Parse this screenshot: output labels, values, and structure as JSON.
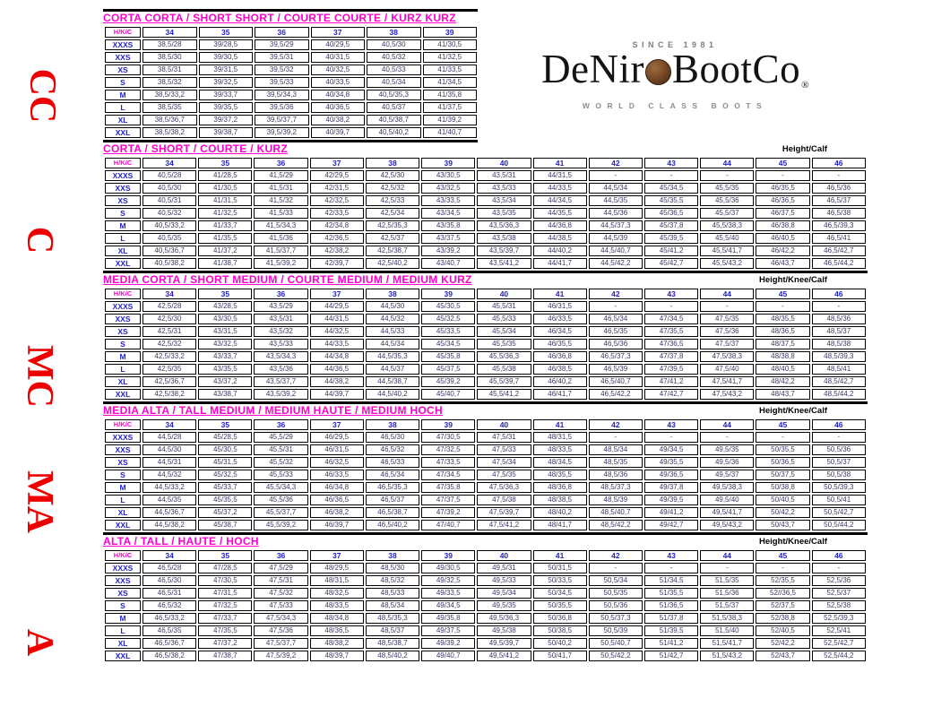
{
  "colors": {
    "title_magenta": "#ff00cc",
    "header_blue": "#2222cc",
    "value_navy": "#3a3a66",
    "side_red": "#ee0000",
    "coin_brown": "#7a4b27"
  },
  "side_labels": [
    {
      "text": "CC"
    },
    {
      "text": "C"
    },
    {
      "text": "MC"
    },
    {
      "text": "MA"
    },
    {
      "text": "A"
    }
  ],
  "logo": {
    "since": "SINCE 1981",
    "name_left": "DeNir",
    "name_right": "BootCo",
    "registered": "®",
    "tagline": "WORLD CLASS BOOTS",
    "coin_icon": "coin-icon"
  },
  "tables": [
    {
      "title": "CORTA CORTA / SHORT SHORT / COURTE COURTE / KURZ KURZ",
      "corner_label": "",
      "header_label": "H/K/C",
      "columns": [
        "34",
        "35",
        "36",
        "37",
        "38",
        "39"
      ],
      "rows": [
        {
          "label": "XXXS",
          "values": [
            "38,5/28",
            "39/28,5",
            "39,5/29",
            "40/29,5",
            "40,5/30",
            "41/30,5"
          ]
        },
        {
          "label": "XXS",
          "values": [
            "38,5/30",
            "39/30,5",
            "39,5/31",
            "40/31,5",
            "40,5/32",
            "41/32,5"
          ]
        },
        {
          "label": "XS",
          "values": [
            "38,5/31",
            "39/31,5",
            "39,5/32",
            "40/32,5",
            "40,5/33",
            "41/33,5"
          ]
        },
        {
          "label": "S",
          "values": [
            "38,5/32",
            "39/32,5",
            "39,5/33",
            "40/33,5",
            "40,5/34",
            "41/34,5"
          ]
        },
        {
          "label": "M",
          "values": [
            "38,5/33,2",
            "39/33,7",
            "39,5/34,3",
            "40/34,8",
            "40,5/35,3",
            "41/35,8"
          ]
        },
        {
          "label": "L",
          "values": [
            "38,5/35",
            "39/35,5",
            "39,5/36",
            "40/36,5",
            "40,5/37",
            "41/37,5"
          ]
        },
        {
          "label": "XL",
          "values": [
            "38,5/36,7",
            "39/37,2",
            "39,5/37,7",
            "40/38,2",
            "40,5/38,7",
            "41/39,2"
          ]
        },
        {
          "label": "XXL",
          "values": [
            "38,5/38,2",
            "39/38,7",
            "39,5/39,2",
            "40/39,7",
            "40,5/40,2",
            "41/40,7"
          ]
        }
      ]
    },
    {
      "title": "CORTA / SHORT / COURTE / KURZ",
      "corner_label": "Height/Calf",
      "header_label": "H/K/C",
      "columns": [
        "34",
        "35",
        "36",
        "37",
        "38",
        "39",
        "40",
        "41",
        "42",
        "43",
        "44",
        "45",
        "46"
      ],
      "rows": [
        {
          "label": "XXXS",
          "values": [
            "40,5/28",
            "41/28,5",
            "41,5/29",
            "42/29,5",
            "42,5/30",
            "43/30,5",
            "43,5/31",
            "44/31,5",
            "-",
            "-",
            "-",
            "-",
            "-"
          ]
        },
        {
          "label": "XXS",
          "values": [
            "40,5/30",
            "41/30,5",
            "41,5/31",
            "42/31,5",
            "42,5/32",
            "43/32,5",
            "43,5/33",
            "44/33,5",
            "44,5/34",
            "45/34,5",
            "45,5/35",
            "46/35,5",
            "46,5/36"
          ]
        },
        {
          "label": "XS",
          "values": [
            "40,5/31",
            "41/31,5",
            "41,5/32",
            "42/32,5",
            "42,5/33",
            "43/33,5",
            "43,5/34",
            "44/34,5",
            "44,5/35",
            "45/35,5",
            "45,5/36",
            "46/36,5",
            "46,5/37"
          ]
        },
        {
          "label": "S",
          "values": [
            "40,5/32",
            "41/32,5",
            "41,5/33",
            "42/33,5",
            "42,5/34",
            "43/34,5",
            "43,5/35",
            "44/35,5",
            "44,5/36",
            "45/36,5",
            "45,5/37",
            "46/37,5",
            "46,5/38"
          ]
        },
        {
          "label": "M",
          "values": [
            "40,5/33,2",
            "41/33,7",
            "41,5/34,3",
            "42/34,8",
            "42,5/35,3",
            "43/35,8",
            "43,5/36,3",
            "44/36,8",
            "44,5/37,3",
            "45/37,8",
            "45,5/38,3",
            "46/38,8",
            "46,5/39,3"
          ]
        },
        {
          "label": "L",
          "values": [
            "40,5/35",
            "41/35,5",
            "41,5/36",
            "42/36,5",
            "42,5/37",
            "43/37,5",
            "43,5/38",
            "44/38,5",
            "44,5/39",
            "45/39,5",
            "45,5/40",
            "46/40,5",
            "46,5/41"
          ]
        },
        {
          "label": "XL",
          "values": [
            "40,5/36,7",
            "41/37,2",
            "41,5/37,7",
            "42/38,2",
            "42,5/38,7",
            "43/39,2",
            "43,5/39,7",
            "44/40,2",
            "44,5/40,7",
            "45/41,2",
            "45,5/41,7",
            "46/42,2",
            "46,5/42,7"
          ]
        },
        {
          "label": "XXL",
          "values": [
            "40,5/38,2",
            "41/38,7",
            "41,5/39,2",
            "42/39,7",
            "42,5/40,2",
            "43/40,7",
            "43,5/41,2",
            "44/41,7",
            "44,5/42,2",
            "45/42,7",
            "45,5/43,2",
            "46/43,7",
            "46,5/44,2"
          ]
        }
      ]
    },
    {
      "title": "MEDIA CORTA / SHORT MEDIUM / COURTE MEDIUM / MEDIUM KURZ",
      "corner_label": "Height/Knee/Calf",
      "header_label": "H/K/C",
      "columns": [
        "34",
        "35",
        "36",
        "37",
        "38",
        "39",
        "40",
        "41",
        "42",
        "43",
        "44",
        "45",
        "46"
      ],
      "rows": [
        {
          "label": "XXXS",
          "values": [
            "42,5/28",
            "43/28,5",
            "43,5/29",
            "44/29,5",
            "44,5/30",
            "45/30,5",
            "45,5/31",
            "46/31,5",
            "-",
            "-",
            "-",
            "-",
            "-"
          ]
        },
        {
          "label": "XXS",
          "values": [
            "42,5/30",
            "43/30,5",
            "43,5/31",
            "44/31,5",
            "44,5/32",
            "45/32,5",
            "45,5/33",
            "46/33,5",
            "46,5/34",
            "47/34,5",
            "47,5/35",
            "48/35,5",
            "48,5/36"
          ]
        },
        {
          "label": "XS",
          "values": [
            "42,5/31",
            "43/31,5",
            "43,5/32",
            "44/32,5",
            "44,5/33",
            "45/33,5",
            "45,5/34",
            "46/34,5",
            "46,5/35",
            "47/35,5",
            "47,5/36",
            "48/36,5",
            "48,5/37"
          ]
        },
        {
          "label": "S",
          "values": [
            "42,5/32",
            "43/32,5",
            "43,5/33",
            "44/33,5",
            "44,5/34",
            "45/34,5",
            "45,5/35",
            "46/35,5",
            "46,5/36",
            "47/36,5",
            "47,5/37",
            "48/37,5",
            "48,5/38"
          ]
        },
        {
          "label": "M",
          "values": [
            "42,5/33,2",
            "43/33,7",
            "43,5/34,3",
            "44/34,8",
            "44,5/35,3",
            "45/35,8",
            "45,5/36,3",
            "46/36,8",
            "46,5/37,3",
            "47/37,8",
            "47,5/38,3",
            "48/38,8",
            "48,5/39,3"
          ]
        },
        {
          "label": "L",
          "values": [
            "42,5/35",
            "43/35,5",
            "43,5/36",
            "44/36,5",
            "44,5/37",
            "45/37,5",
            "45,5/38",
            "46/38,5",
            "46,5/39",
            "47/39,5",
            "47,5/40",
            "48/40,5",
            "48,5/41"
          ]
        },
        {
          "label": "XL",
          "values": [
            "42,5/36,7",
            "43/37,2",
            "43,5/37,7",
            "44/38,2",
            "44,5/38,7",
            "45/39,2",
            "45,5/39,7",
            "46/40,2",
            "46,5/40,7",
            "47/41,2",
            "47,5/41,7",
            "48/42,2",
            "48,5/42,7"
          ]
        },
        {
          "label": "XXL",
          "values": [
            "42,5/38,2",
            "43/38,7",
            "43,5/39,2",
            "44/39,7",
            "44,5/40,2",
            "45/40,7",
            "45,5/41,2",
            "46/41,7",
            "46,5/42,2",
            "47/42,7",
            "47,5/43,2",
            "48/43,7",
            "48,5/44,2"
          ]
        }
      ]
    },
    {
      "title": "MEDIA ALTA / TALL MEDIUM / MEDIUM HAUTE / MEDIUM HOCH",
      "corner_label": "Height/Knee/Calf",
      "header_label": "H/K/C",
      "columns": [
        "34",
        "35",
        "36",
        "37",
        "38",
        "39",
        "40",
        "41",
        "42",
        "43",
        "44",
        "45",
        "46"
      ],
      "rows": [
        {
          "label": "XXXS",
          "values": [
            "44,5/28",
            "45/28,5",
            "45,5/29",
            "46/29,5",
            "46,5/30",
            "47/30,5",
            "47,5/31",
            "48/31,5",
            "-",
            "-",
            "-",
            "-",
            "-"
          ]
        },
        {
          "label": "XXS",
          "values": [
            "44,5/30",
            "45/30,5",
            "45,5/31",
            "46/31,5",
            "46,5/32",
            "47/32,5",
            "47,5/33",
            "48/33,5",
            "48,5/34",
            "49/34,5",
            "49,5/35",
            "50/35,5",
            "50,5/36"
          ]
        },
        {
          "label": "XS",
          "values": [
            "44,5/31",
            "45/31,5",
            "45,5/32",
            "46/32,5",
            "46,5/33",
            "47/33,5",
            "47,5/34",
            "48/34,5",
            "48,5/35",
            "49/35,5",
            "49,5/36",
            "50/36,5",
            "50,5/37"
          ]
        },
        {
          "label": "S",
          "values": [
            "44,5/32",
            "45/32,5",
            "45,5/33",
            "46/33,5",
            "46,5/34",
            "47/34,5",
            "47,5/35",
            "48/35,5",
            "48,5/36",
            "49/36,5",
            "49,5/37",
            "50/37,5",
            "50,5/38"
          ]
        },
        {
          "label": "M",
          "values": [
            "44,5/33,2",
            "45/33,7",
            "45,5/34,3",
            "46/34,8",
            "46,5/35,3",
            "47/35,8",
            "47,5/36,3",
            "48/36,8",
            "48,5/37,3",
            "49/37,8",
            "49,5/38,3",
            "50/38,8",
            "50,5/39,3"
          ]
        },
        {
          "label": "L",
          "values": [
            "44,5/35",
            "45/35,5",
            "45,5/36",
            "46/36,5",
            "46,5/37",
            "47/37,5",
            "47,5/38",
            "48/38,5",
            "48,5/39",
            "49/39,5",
            "49,5/40",
            "50/40,5",
            "50,5/41"
          ]
        },
        {
          "label": "XL",
          "values": [
            "44,5/36,7",
            "45/37,2",
            "45,5/37,7",
            "46/38,2",
            "46,5/38,7",
            "47/39,2",
            "47,5/39,7",
            "48/40,2",
            "48,5/40,7",
            "49/41,2",
            "49,5/41,7",
            "50/42,2",
            "50,5/42,7"
          ]
        },
        {
          "label": "XXL",
          "values": [
            "44,5/38,2",
            "45/38,7",
            "45,5/39,2",
            "46/39,7",
            "46,5/40,2",
            "47/40,7",
            "47,5/41,2",
            "48/41,7",
            "48,5/42,2",
            "49/42,7",
            "49,5/43,2",
            "50/43,7",
            "50,5/44,2"
          ]
        }
      ]
    },
    {
      "title": "ALTA / TALL / HAUTE / HOCH",
      "corner_label": "Height/Knee/Calf",
      "header_label": "H/K/C",
      "columns": [
        "34",
        "35",
        "36",
        "37",
        "38",
        "39",
        "40",
        "41",
        "42",
        "43",
        "44",
        "45",
        "46"
      ],
      "rows": [
        {
          "label": "XXXS",
          "values": [
            "46,5/28",
            "47/28,5",
            "47,5/29",
            "48/29,5",
            "48,5/30",
            "49/30,5",
            "49,5/31",
            "50/31,5",
            "-",
            "-",
            "-",
            "-",
            "-"
          ]
        },
        {
          "label": "XXS",
          "values": [
            "46,5/30",
            "47/30,5",
            "47,5/31",
            "48/31,5",
            "48,5/32",
            "49/32,5",
            "49,5/33",
            "50/33,5",
            "50,5/34",
            "51/34,5",
            "51,5/35",
            "52/35,5",
            "52,5/36"
          ]
        },
        {
          "label": "XS",
          "values": [
            "46,5/31",
            "47/31,5",
            "47,5/32",
            "48/32,5",
            "48,5/33",
            "49/33,5",
            "49,5/34",
            "50/34,5",
            "50,5/35",
            "51/35,5",
            "51,5/36",
            "52//36,5",
            "52,5/37"
          ]
        },
        {
          "label": "S",
          "values": [
            "46,5/32",
            "47/32,5",
            "47,5/33",
            "48/33,5",
            "48,5/34",
            "49/34,5",
            "49,5/35",
            "50/35,5",
            "50,5/36",
            "51/36,5",
            "51,5/37",
            "52/37,5",
            "52,5/38"
          ]
        },
        {
          "label": "M",
          "values": [
            "46,5/33,2",
            "47/33,7",
            "47,5/34,3",
            "48/34,8",
            "48,5/35,3",
            "49/35,8",
            "49,5/36,3",
            "50/36,8",
            "50,5/37,3",
            "51/37,8",
            "51,5/38,3",
            "52/38,8",
            "52,5/39,3"
          ]
        },
        {
          "label": "L",
          "values": [
            "46,5/35",
            "47/35,5",
            "47,5/36",
            "48/36,5",
            "48,5/37",
            "49/37,5",
            "49,5/38",
            "50/38,5",
            "50,5/39",
            "51/39,5",
            "51,5/40",
            "52/40,5",
            "52,5/41"
          ]
        },
        {
          "label": "XL",
          "values": [
            "46,5/36,7",
            "47/37,2",
            "47,5/37,7",
            "48/38,2",
            "48,5/38,7",
            "49/39,2",
            "49,5/39,7",
            "50/40,2",
            "50,5/40,7",
            "51/41,2",
            "51,5/41,7",
            "52/42,2",
            "52,5/42,7"
          ]
        },
        {
          "label": "XXL",
          "values": [
            "46,5/38,2",
            "47/38,7",
            "47,5/39,2",
            "48/39,7",
            "48,5/40,2",
            "49/40,7",
            "49,5/41,2",
            "50/41,7",
            "50,5/42,2",
            "51/42,7",
            "51,5/43,2",
            "52/43,7",
            "52,5/44,2"
          ]
        }
      ]
    }
  ]
}
